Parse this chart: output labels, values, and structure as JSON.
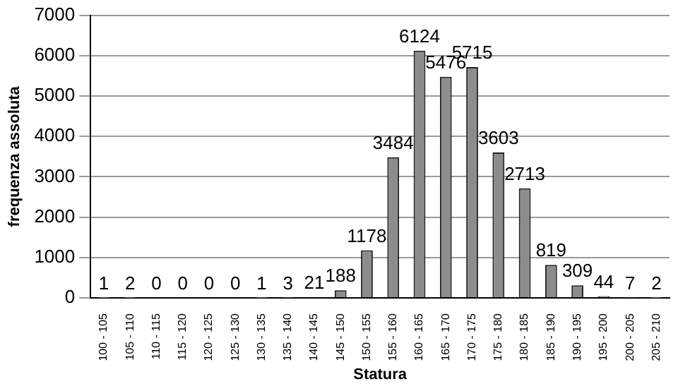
{
  "chart_data": {
    "type": "bar",
    "xlabel": "Statura",
    "ylabel": "frequenza assoluta",
    "categories": [
      "100 - 105",
      "105 - 110",
      "110 - 115",
      "115 - 120",
      "120 - 125",
      "125 - 130",
      "130 - 135",
      "135 - 140",
      "140 - 145",
      "145 - 150",
      "150 - 155",
      "155 - 160",
      "160 - 165",
      "165 - 170",
      "170 - 175",
      "175 - 180",
      "180 - 185",
      "185 - 190",
      "190 - 195",
      "195 - 200",
      "200 - 205",
      "205 - 210"
    ],
    "values": [
      1,
      2,
      0,
      0,
      0,
      0,
      1,
      3,
      21,
      188,
      1178,
      3484,
      6124,
      5476,
      5715,
      3603,
      2713,
      819,
      309,
      44,
      7,
      2
    ],
    "color": "#8c8c8c",
    "ylim": [
      0,
      7000
    ],
    "yticks": [
      0,
      1000,
      2000,
      3000,
      4000,
      5000,
      6000,
      7000
    ],
    "grid": "y",
    "data_labels": true
  }
}
